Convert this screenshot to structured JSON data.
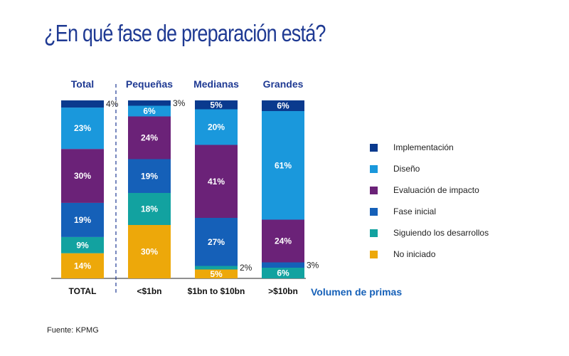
{
  "title": "¿En qué fase de preparación está?",
  "source": "Fuente: KPMG",
  "colors": {
    "Implementación": "#0a3a8e",
    "Diseño": "#1a98dc",
    "Evaluación de impacto": "#6b2278",
    "Fase inicial": "#1560b8",
    "Siguiendo los desarrollos": "#12a2a0",
    "No iniciado": "#eda80a",
    "header": "#1f3a93",
    "xlabel": "#1560b8",
    "label": "#ffffff"
  },
  "chart_data": {
    "type": "bar",
    "stacked": true,
    "orientation": "vertical",
    "xlabel": "Volumen de primas",
    "group_headers": [
      "Total",
      "Pequeñas",
      "Medianas",
      "Grandes"
    ],
    "categories": [
      "TOTAL",
      "<$1bn",
      "$1bn to $10bn",
      ">$10bn"
    ],
    "series": [
      {
        "name": "No iniciado",
        "values": [
          14,
          30,
          5,
          0
        ],
        "labels": [
          "14%",
          "30%",
          "5%",
          ""
        ]
      },
      {
        "name": "Siguiendo los desarrollos",
        "values": [
          9,
          18,
          2,
          6
        ],
        "labels": [
          "9%",
          "18%",
          "2%",
          "6%"
        ]
      },
      {
        "name": "Fase inicial",
        "values": [
          19,
          19,
          27,
          3
        ],
        "labels": [
          "19%",
          "19%",
          "27%",
          "3%"
        ]
      },
      {
        "name": "Evaluación de impacto",
        "values": [
          30,
          24,
          41,
          24
        ],
        "labels": [
          "30%",
          "24%",
          "41%",
          "24%"
        ]
      },
      {
        "name": "Diseño",
        "values": [
          23,
          6,
          20,
          61
        ],
        "labels": [
          "23%",
          "6%",
          "20%",
          "61%"
        ]
      },
      {
        "name": "Implementación",
        "values": [
          4,
          3,
          5,
          6
        ],
        "labels": [
          "4%",
          "3%",
          "5%",
          "6%"
        ]
      }
    ],
    "legend": [
      "Implementación",
      "Diseño",
      "Evaluación de impacto",
      "Fase inicial",
      "Siguiendo los desarrollos",
      "No iniciado"
    ]
  }
}
